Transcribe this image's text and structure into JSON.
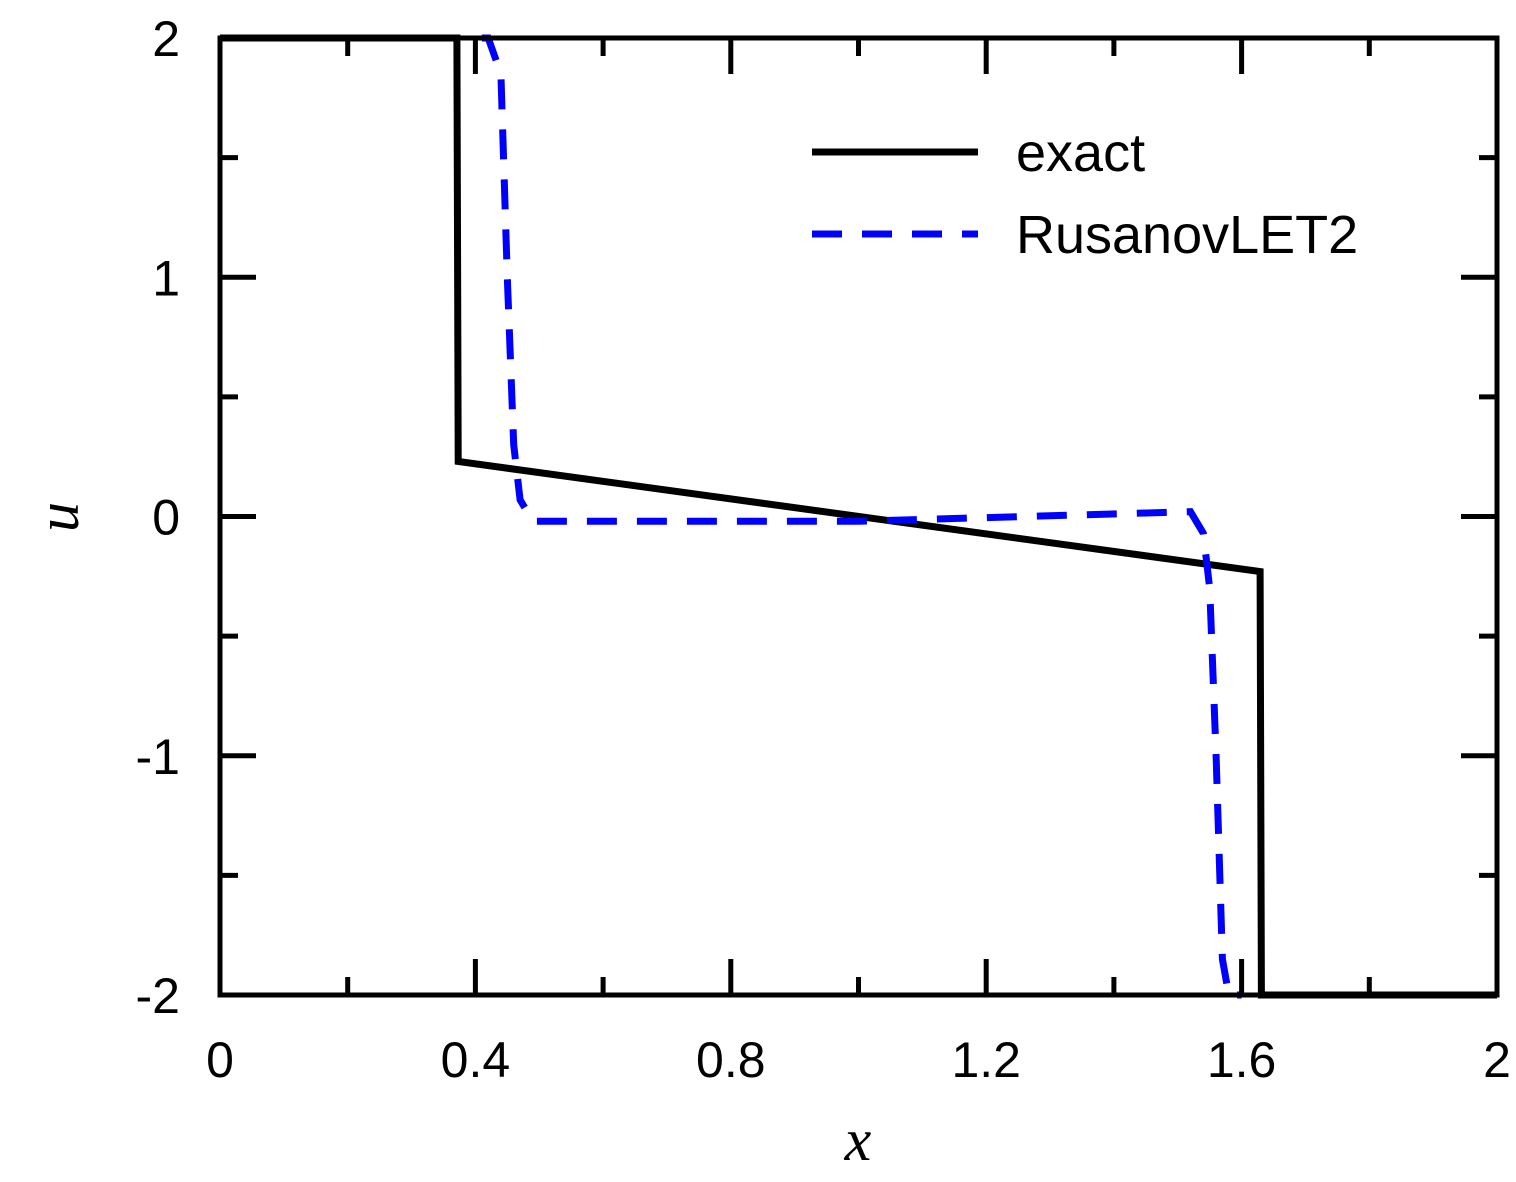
{
  "chart_data": {
    "type": "line",
    "title": "",
    "xlabel": "x",
    "ylabel": "u",
    "xlim": [
      0,
      2
    ],
    "ylim": [
      -2,
      2
    ],
    "xticks": [
      0,
      0.4,
      0.8,
      1.2,
      1.6,
      2
    ],
    "xtick_labels": [
      "0",
      "0.4",
      "0.8",
      "1.2",
      "1.6",
      "2"
    ],
    "x_minor_ticks": [
      0.2,
      0.6,
      1.0,
      1.4,
      1.8
    ],
    "yticks": [
      2,
      1,
      0,
      -1,
      -2
    ],
    "ytick_labels": [
      "2",
      "1",
      "0",
      "-1",
      "-2"
    ],
    "y_minor_ticks": [
      1.5,
      0.5,
      -0.5,
      -1.5
    ],
    "grid": false,
    "legend_position": "top-right",
    "series": [
      {
        "name": "exact",
        "color": "#000000",
        "style": "solid",
        "x": [
          0,
          0.371,
          0.373,
          1.629,
          1.631,
          2
        ],
        "y": [
          2,
          2,
          0.23,
          -0.23,
          -2,
          -2
        ]
      },
      {
        "name": "RusanovLET2",
        "color": "#0000ff",
        "style": "dashed",
        "x": [
          0.41,
          0.42,
          0.44,
          0.45,
          0.46,
          0.47,
          0.49,
          1.0,
          1.52,
          1.54,
          1.55,
          1.56,
          1.57,
          1.58,
          1.6
        ],
        "y": [
          2,
          2,
          1.85,
          1.0,
          0.3,
          0.07,
          -0.02,
          -0.02,
          0.02,
          -0.07,
          -0.3,
          -1.0,
          -1.85,
          -2,
          -2
        ]
      }
    ]
  }
}
